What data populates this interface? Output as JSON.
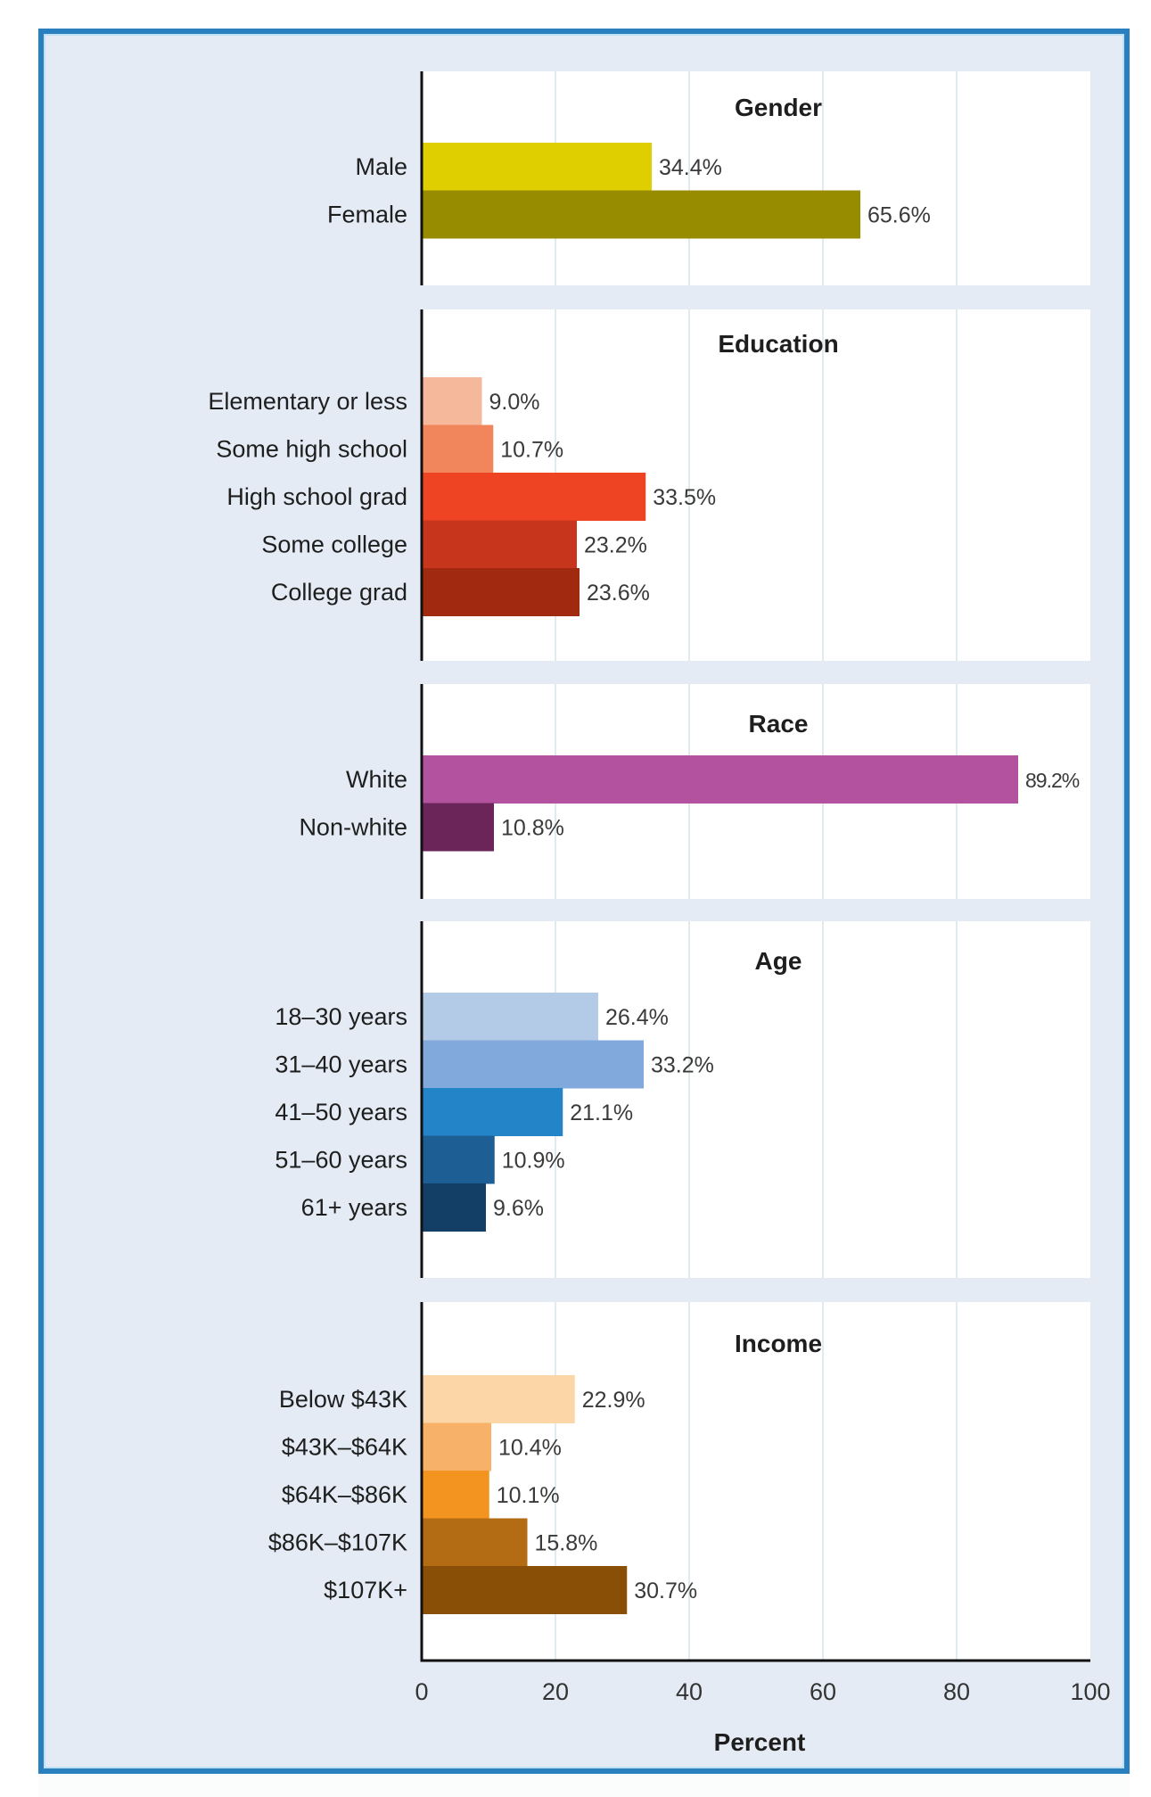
{
  "chart_data": {
    "type": "bar",
    "orientation": "horizontal",
    "xlabel": "Percent",
    "xlim": [
      0,
      100
    ],
    "xticks": [
      0,
      20,
      40,
      60,
      80,
      100
    ],
    "grid": true,
    "panels": [
      {
        "title": "Gender",
        "categories": [
          "Male",
          "Female"
        ],
        "values": [
          34.4,
          65.6
        ],
        "labels": [
          "34.4%",
          "65.6%"
        ],
        "colors": [
          "#e0cf00",
          "#978b00"
        ]
      },
      {
        "title": "Education",
        "categories": [
          "Elementary or less",
          "Some high school",
          "High school grad",
          "Some college",
          "College grad"
        ],
        "values": [
          9.0,
          10.7,
          33.5,
          23.2,
          23.6
        ],
        "labels": [
          "9.0%",
          "10.7%",
          "33.5%",
          "23.2%",
          "23.6%"
        ],
        "colors": [
          "#f6b89a",
          "#f1865c",
          "#ee4424",
          "#c7361c",
          "#a02910"
        ]
      },
      {
        "title": "Race",
        "categories": [
          "White",
          "Non-white"
        ],
        "values": [
          89.2,
          10.8
        ],
        "labels": [
          "89.2%",
          "10.8%"
        ],
        "colors": [
          "#b3529f",
          "#6b2559"
        ]
      },
      {
        "title": "Age",
        "categories": [
          "18–30 years",
          "31–40 years",
          "41–50 years",
          "51–60 years",
          "61+ years"
        ],
        "values": [
          26.4,
          33.2,
          21.1,
          10.9,
          9.6
        ],
        "labels": [
          "26.4%",
          "33.2%",
          "21.1%",
          "10.9%",
          "9.6%"
        ],
        "colors": [
          "#b4cbe8",
          "#82a9dc",
          "#2484c8",
          "#1d5f95",
          "#133f66"
        ]
      },
      {
        "title": "Income",
        "categories": [
          "Below $43K",
          "$43K–$64K",
          "$64K–$86K",
          "$86K–$107K",
          "$107K+"
        ],
        "values": [
          22.9,
          10.4,
          10.1,
          15.8,
          30.7
        ],
        "labels": [
          "22.9%",
          "10.4%",
          "10.1%",
          "15.8%",
          "30.7%"
        ],
        "colors": [
          "#fcd6a6",
          "#f7b168",
          "#f49420",
          "#b36b14",
          "#8a4f06"
        ]
      }
    ]
  },
  "colors": {
    "frame_border": "#2a7fbf",
    "background": "#e4ebf4",
    "panel": "#ffffff",
    "gridline": "#d5e4ea"
  }
}
